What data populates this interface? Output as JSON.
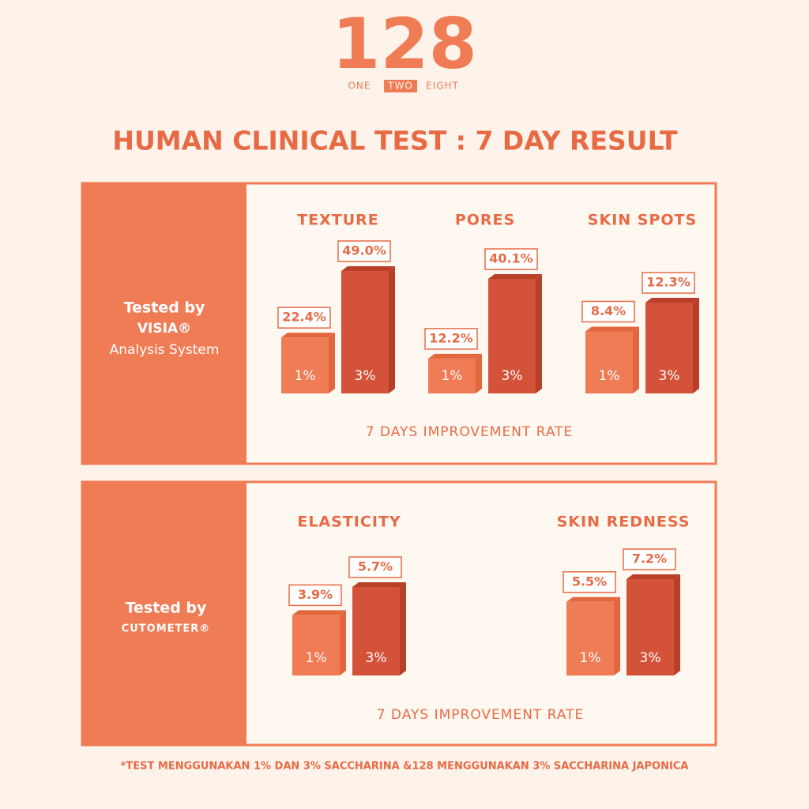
{
  "logo": {
    "mark": "128",
    "words": [
      "ONE",
      "TWO",
      "EIGHT"
    ]
  },
  "title": "HUMAN CLINICAL TEST : 7 DAY RESULT",
  "panels": [
    {
      "label_lines": [
        "Tested by",
        "VISIA®",
        "Analysis System"
      ],
      "caption": "7 DAYS IMPROVEMENT RATE"
    },
    {
      "label_lines": [
        "Tested by",
        "CUTOMETER®"
      ],
      "caption": "7 DAYS IMPROVEMENT RATE"
    }
  ],
  "chart_data": [
    {
      "type": "bar",
      "title": "TEXTURE",
      "categories": [
        "1%",
        "3%"
      ],
      "values": [
        22.4,
        49.0
      ],
      "value_labels": [
        "22.4%",
        "49.0%"
      ],
      "colors": [
        "#f07c55",
        "#d4523a"
      ]
    },
    {
      "type": "bar",
      "title": "PORES",
      "categories": [
        "1%",
        "3%"
      ],
      "values": [
        12.2,
        40.1
      ],
      "value_labels": [
        "12.2%",
        "40.1%"
      ],
      "colors": [
        "#f07c55",
        "#d4523a"
      ]
    },
    {
      "type": "bar",
      "title": "SKIN SPOTS",
      "categories": [
        "1%",
        "3%"
      ],
      "values": [
        8.4,
        12.3
      ],
      "value_labels": [
        "8.4%",
        "12.3%"
      ],
      "colors": [
        "#f07c55",
        "#d4523a"
      ]
    },
    {
      "type": "bar",
      "title": "ELASTICITY",
      "categories": [
        "1%",
        "3%"
      ],
      "values": [
        3.9,
        5.7
      ],
      "value_labels": [
        "3.9%",
        "5.7%"
      ],
      "colors": [
        "#f07c55",
        "#d4523a"
      ]
    },
    {
      "type": "bar",
      "title": "SKIN REDNESS",
      "categories": [
        "1%",
        "3%"
      ],
      "values": [
        5.5,
        7.2
      ],
      "value_labels": [
        "5.5%",
        "7.2%"
      ],
      "colors": [
        "#f07c55",
        "#d4523a"
      ]
    }
  ],
  "footnote": "*TEST MENGGUNAKAN 1% DAN 3% SACCHARINA &128 MENGGUNAKAN 3% SACCHARINA JAPONICA"
}
